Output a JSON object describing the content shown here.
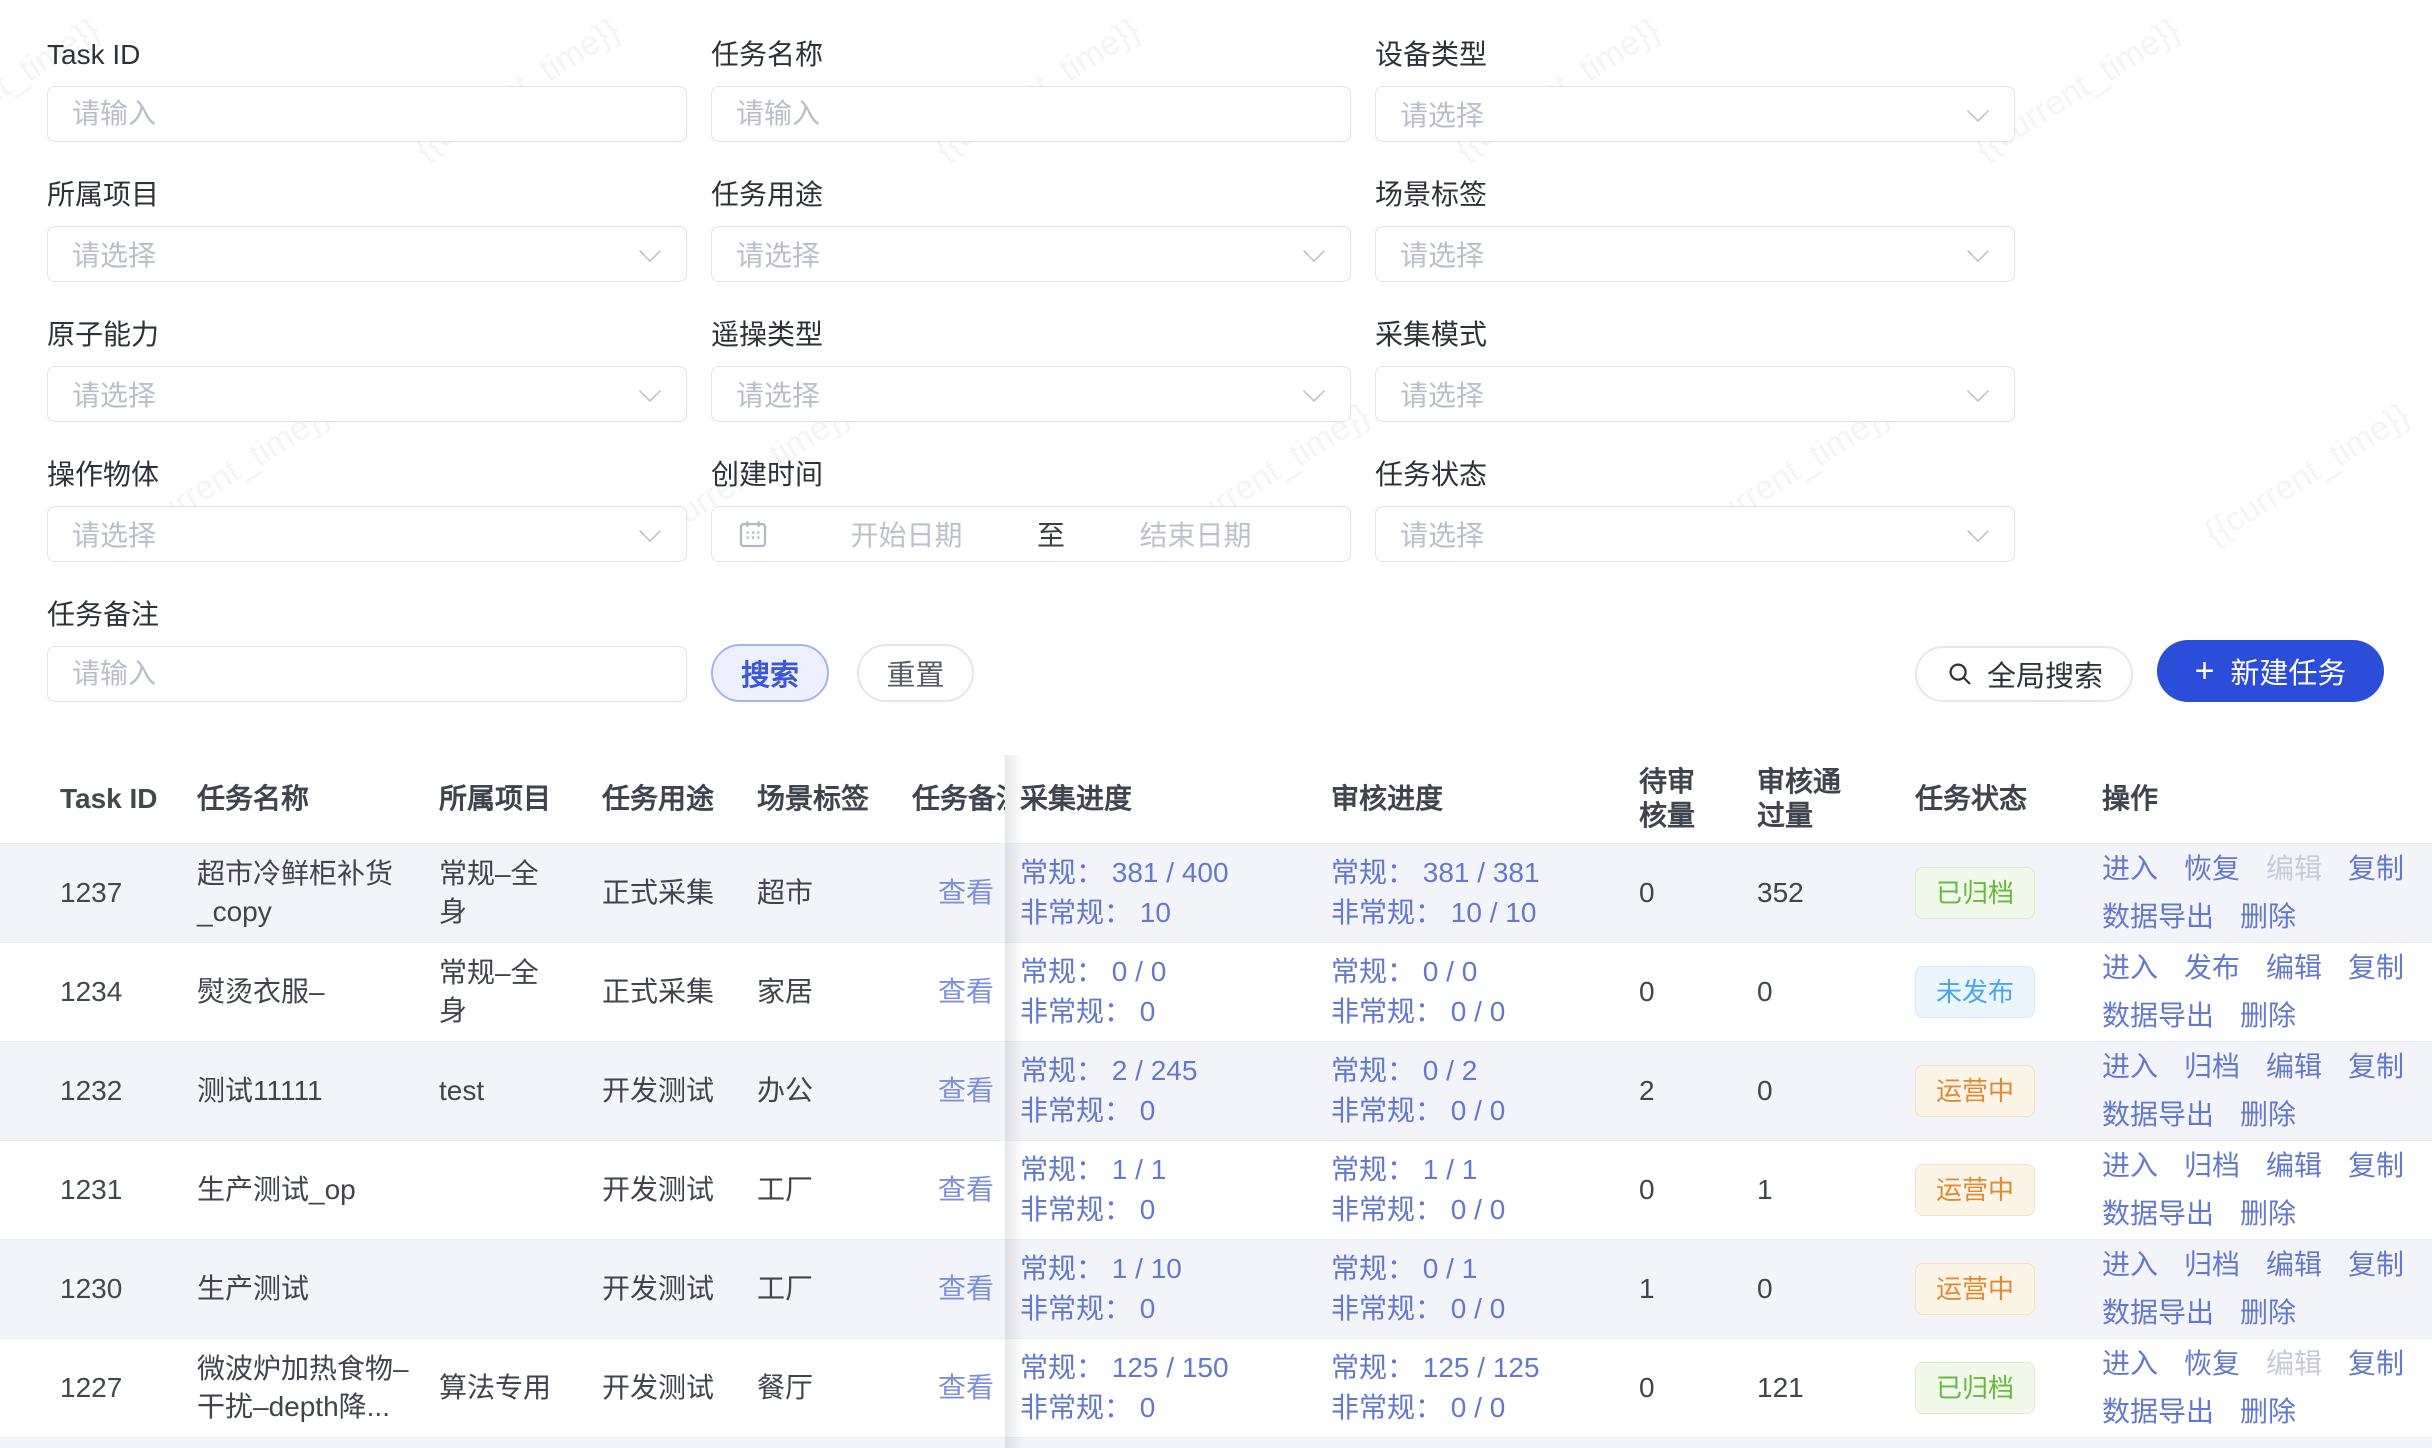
{
  "watermark": "{{current_time}}",
  "filters": {
    "fields": [
      {
        "label": "Task ID",
        "placeholder": "请输入"
      },
      {
        "label": "任务名称",
        "placeholder": "请输入"
      },
      {
        "label": "设备类型",
        "placeholder": "请选择"
      },
      {
        "label": "所属项目",
        "placeholder": "请选择"
      },
      {
        "label": "任务用途",
        "placeholder": "请选择"
      },
      {
        "label": "场景标签",
        "placeholder": "请选择"
      },
      {
        "label": "原子能力",
        "placeholder": "请选择"
      },
      {
        "label": "遥操类型",
        "placeholder": "请选择"
      },
      {
        "label": "采集模式",
        "placeholder": "请选择"
      },
      {
        "label": "操作物体",
        "placeholder": "请选择"
      },
      {
        "label": "创建时间",
        "start": "开始日期",
        "separator": "至",
        "end": "结束日期"
      },
      {
        "label": "任务状态",
        "placeholder": "请选择"
      },
      {
        "label": "任务备注",
        "placeholder": "请输入"
      }
    ]
  },
  "toolbar": {
    "search": "搜索",
    "reset": "重置",
    "global_search": "全局搜索",
    "create_plus": "+",
    "create_task": "新建任务"
  },
  "colors": {
    "primary": "#2b4dda",
    "link": "#6379cd",
    "status_success": "#67b83e",
    "status_info": "#4ba4f0",
    "status_warning": "#e08b33"
  },
  "table": {
    "headers": {
      "id": "Task ID",
      "name": "任务名称",
      "project": "所属项目",
      "purpose": "任务用途",
      "scene": "场景标签",
      "remark": "任务备注",
      "collect": "采集进度",
      "review": "审核进度",
      "pending": "待审\n核量",
      "approved": "审核通\n过量",
      "status": "任务状态",
      "actions": "操作"
    },
    "rows": [
      {
        "id": "1237",
        "name": "超市冷鲜柜补货\n_copy",
        "project": "常规–全\n身",
        "purpose": "正式采集",
        "scene": "超市",
        "remark_link": "查看",
        "collect_normal": "常规： 381 / 400",
        "collect_abnormal": "非常规： 10",
        "review_normal": "常规： 381 / 381",
        "review_abnormal": "非常规： 10 / 10",
        "pending": "0",
        "approved": "352",
        "status_label": "已归档",
        "status_type": "success",
        "actions": [
          {
            "name": "enter",
            "label": "进入"
          },
          {
            "name": "restore",
            "label": "恢复"
          },
          {
            "name": "edit",
            "label": "编辑",
            "disabled": true
          },
          {
            "name": "copy",
            "label": "复制"
          },
          {
            "name": "data-export",
            "label": "数据导出"
          },
          {
            "name": "delete",
            "label": "删除"
          }
        ]
      },
      {
        "id": "1234",
        "name": "熨烫衣服–",
        "project": "常规–全\n身",
        "purpose": "正式采集",
        "scene": "家居",
        "remark_link": "查看",
        "collect_normal": "常规： 0 / 0",
        "collect_abnormal": "非常规： 0",
        "review_normal": "常规： 0 / 0",
        "review_abnormal": "非常规： 0 / 0",
        "pending": "0",
        "approved": "0",
        "status_label": "未发布",
        "status_type": "info",
        "actions": [
          {
            "name": "enter",
            "label": "进入"
          },
          {
            "name": "publish",
            "label": "发布"
          },
          {
            "name": "edit",
            "label": "编辑"
          },
          {
            "name": "copy",
            "label": "复制"
          },
          {
            "name": "data-export",
            "label": "数据导出"
          },
          {
            "name": "delete",
            "label": "删除"
          }
        ]
      },
      {
        "id": "1232",
        "name": "测试11111",
        "project": "test",
        "purpose": "开发测试",
        "scene": "办公",
        "remark_link": "查看",
        "collect_normal": "常规： 2 / 245",
        "collect_abnormal": "非常规： 0",
        "review_normal": "常规： 0 / 2",
        "review_abnormal": "非常规： 0 / 0",
        "pending": "2",
        "approved": "0",
        "status_label": "运营中",
        "status_type": "warning",
        "actions": [
          {
            "name": "enter",
            "label": "进入"
          },
          {
            "name": "archive",
            "label": "归档"
          },
          {
            "name": "edit",
            "label": "编辑"
          },
          {
            "name": "copy",
            "label": "复制"
          },
          {
            "name": "data-export",
            "label": "数据导出"
          },
          {
            "name": "delete",
            "label": "删除"
          }
        ]
      },
      {
        "id": "1231",
        "name": "生产测试_op",
        "project": "",
        "purpose": "开发测试",
        "scene": "工厂",
        "remark_link": "查看",
        "collect_normal": "常规： 1 / 1",
        "collect_abnormal": "非常规： 0",
        "review_normal": "常规： 1 / 1",
        "review_abnormal": "非常规： 0 / 0",
        "pending": "0",
        "approved": "1",
        "status_label": "运营中",
        "status_type": "warning",
        "actions": [
          {
            "name": "enter",
            "label": "进入"
          },
          {
            "name": "archive",
            "label": "归档"
          },
          {
            "name": "edit",
            "label": "编辑"
          },
          {
            "name": "copy",
            "label": "复制"
          },
          {
            "name": "data-export",
            "label": "数据导出"
          },
          {
            "name": "delete",
            "label": "删除"
          }
        ]
      },
      {
        "id": "1230",
        "name": "生产测试",
        "project": "",
        "purpose": "开发测试",
        "scene": "工厂",
        "remark_link": "查看",
        "collect_normal": "常规： 1 / 10",
        "collect_abnormal": "非常规： 0",
        "review_normal": "常规： 0 / 1",
        "review_abnormal": "非常规： 0 / 0",
        "pending": "1",
        "approved": "0",
        "status_label": "运营中",
        "status_type": "warning",
        "actions": [
          {
            "name": "enter",
            "label": "进入"
          },
          {
            "name": "archive",
            "label": "归档"
          },
          {
            "name": "edit",
            "label": "编辑"
          },
          {
            "name": "copy",
            "label": "复制"
          },
          {
            "name": "data-export",
            "label": "数据导出"
          },
          {
            "name": "delete",
            "label": "删除"
          }
        ]
      },
      {
        "id": "1227",
        "name": "微波炉加热食物–\n干扰–depth降...",
        "project": "算法专用",
        "purpose": "开发测试",
        "scene": "餐厅",
        "remark_link": "查看",
        "collect_normal": "常规： 125 / 150",
        "collect_abnormal": "非常规： 0",
        "review_normal": "常规： 125 / 125",
        "review_abnormal": "非常规： 0 / 0",
        "pending": "0",
        "approved": "121",
        "status_label": "已归档",
        "status_type": "success",
        "actions": [
          {
            "name": "enter",
            "label": "进入"
          },
          {
            "name": "restore",
            "label": "恢复"
          },
          {
            "name": "edit",
            "label": "编辑",
            "disabled": true
          },
          {
            "name": "copy",
            "label": "复制"
          },
          {
            "name": "data-export",
            "label": "数据导出"
          },
          {
            "name": "delete",
            "label": "删除"
          }
        ]
      }
    ]
  }
}
